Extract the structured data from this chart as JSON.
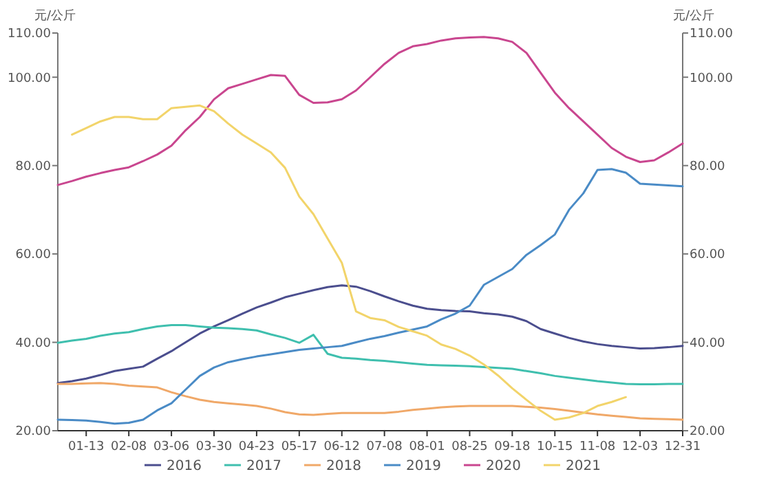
{
  "chart_data": {
    "type": "line",
    "categories": [
      null,
      null,
      "01-13",
      null,
      null,
      "02-08",
      null,
      null,
      "03-06",
      null,
      null,
      "03-30",
      null,
      null,
      "04-23",
      null,
      null,
      "05-17",
      null,
      null,
      "06-12",
      null,
      null,
      "07-08",
      null,
      null,
      "08-01",
      null,
      null,
      "08-25",
      null,
      null,
      "09-18",
      null,
      null,
      "10-15",
      null,
      null,
      "11-08",
      null,
      null,
      "12-03",
      null,
      null,
      "12-31"
    ],
    "ylabel": "元/公斤",
    "y2label": "元/公斤",
    "ylim": [
      20,
      110
    ],
    "yticks": [
      {
        "value": 20,
        "label": "20.00"
      },
      {
        "value": 40,
        "label": "40.00"
      },
      {
        "value": 60,
        "label": "60.00"
      },
      {
        "value": 80,
        "label": "80.00"
      },
      {
        "value": 100,
        "label": "100.00"
      },
      {
        "value": 110,
        "label": "110.00"
      }
    ],
    "y2lim": [
      20,
      110
    ],
    "y2ticks": [
      {
        "value": 20,
        "label": "20.00"
      },
      {
        "value": 40,
        "label": "40.00"
      },
      {
        "value": 60,
        "label": "60.00"
      },
      {
        "value": 80,
        "label": "80.00"
      },
      {
        "value": 100,
        "label": "100.00"
      },
      {
        "value": 110,
        "label": "110.00"
      }
    ],
    "grid": false,
    "legend": "bottom",
    "marker": "none",
    "line_style": "solid",
    "series": [
      {
        "name": "2016",
        "color": "#4b4e8e",
        "values": [
          30.8,
          31.2,
          31.8,
          32.6,
          33.5,
          34,
          34.5,
          36.3,
          38,
          40,
          42,
          43.6,
          45,
          46.5,
          47.9,
          49,
          50.2,
          51,
          51.8,
          52.5,
          52.9,
          52.6,
          51.6,
          50.4,
          49.3,
          48.3,
          47.6,
          47.3,
          47.1,
          47,
          46.6,
          46.3,
          45.8,
          44.8,
          43,
          42,
          41,
          40.2,
          39.6,
          39.2,
          38.9,
          38.6,
          38.7,
          38.9,
          39.2
        ]
      },
      {
        "name": "2017",
        "color": "#3fbfae",
        "values": [
          39.9,
          40.4,
          40.8,
          41.5,
          42,
          42.3,
          43,
          43.6,
          43.9,
          43.9,
          43.6,
          43.3,
          43.2,
          43,
          42.7,
          41.8,
          41,
          39.9,
          41.7,
          37.4,
          36.5,
          36.3,
          36,
          35.8,
          35.5,
          35.2,
          34.9,
          34.8,
          34.7,
          34.6,
          34.4,
          34.2,
          34,
          33.5,
          33,
          32.4,
          32,
          31.6,
          31.2,
          30.9,
          30.6,
          30.5,
          30.5,
          30.6,
          30.6
        ]
      },
      {
        "name": "2018",
        "color": "#f0a868",
        "values": [
          30.6,
          30.6,
          30.7,
          30.8,
          30.6,
          30.2,
          30,
          29.8,
          28.7,
          27.8,
          27,
          26.5,
          26.2,
          25.9,
          25.6,
          25,
          24.2,
          23.7,
          23.6,
          23.8,
          24,
          24,
          24,
          24,
          24.3,
          24.7,
          25,
          25.3,
          25.5,
          25.6,
          25.6,
          25.6,
          25.6,
          25.4,
          25.2,
          24.9,
          24.5,
          24.1,
          23.7,
          23.4,
          23.1,
          22.8,
          22.7,
          22.6,
          22.5
        ]
      },
      {
        "name": "2019",
        "color": "#4a8bc6",
        "values": [
          22.5,
          22.4,
          22.3,
          22,
          21.6,
          21.8,
          22.5,
          24.6,
          26.2,
          29.3,
          32.4,
          34.3,
          35.5,
          36.2,
          36.8,
          37.3,
          37.8,
          38.3,
          38.6,
          38.9,
          39.2,
          40,
          40.8,
          41.4,
          42.2,
          42.9,
          43.6,
          45.2,
          46.5,
          48.3,
          53,
          54.8,
          56.6,
          59.8,
          62,
          64.4,
          70,
          73.7,
          79,
          79.2,
          78.4,
          75.9,
          75.7,
          75.5,
          75.3
        ]
      },
      {
        "name": "2020",
        "color": "#c9468f",
        "values": [
          75.6,
          76.5,
          77.5,
          78.3,
          79,
          79.6,
          81,
          82.5,
          84.5,
          88,
          91,
          95,
          97.5,
          98.5,
          99.5,
          100.5,
          100.3,
          96,
          94.2,
          94.3,
          95,
          97,
          100,
          103,
          105.5,
          107,
          107.5,
          108.3,
          108.8,
          109,
          109.1,
          108.8,
          108,
          105.5,
          101,
          96.5,
          93,
          90,
          87,
          84,
          82,
          80.8,
          81.2,
          83,
          85
        ]
      },
      {
        "name": "2021",
        "color": "#f2d46a",
        "values": [
          null,
          87,
          88.5,
          90,
          91,
          91,
          90.5,
          90.5,
          93,
          93.3,
          93.6,
          92.3,
          89.5,
          87,
          85,
          83,
          79.5,
          73,
          69,
          63.5,
          58,
          47,
          45.5,
          45,
          43.5,
          42.5,
          41.5,
          39.5,
          38.5,
          37,
          35,
          32.5,
          29.6,
          27,
          24.5,
          22.5,
          23,
          24,
          25.6,
          26.5,
          27.6,
          null,
          null,
          null,
          null
        ]
      }
    ]
  }
}
